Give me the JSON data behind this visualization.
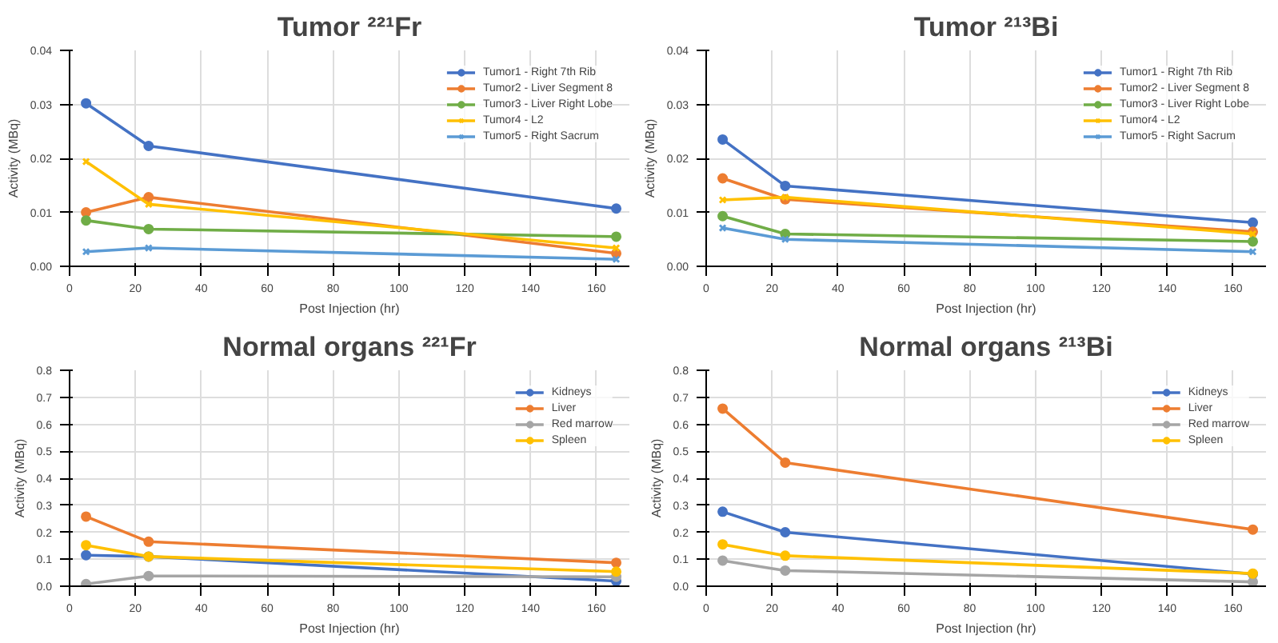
{
  "chart_data": [
    {
      "type": "line",
      "title": "Tumor ²²¹Fr",
      "xlabel": "Post Injection (hr)",
      "ylabel": "Activity (MBq)",
      "x": [
        5,
        24,
        166
      ],
      "xlim": [
        0,
        170
      ],
      "xticks": [
        0,
        20,
        40,
        60,
        80,
        100,
        120,
        140,
        160
      ],
      "ylim": [
        0,
        0.04
      ],
      "yticks": [
        {
          "value": 0,
          "label": "0.00"
        },
        {
          "value": 0.01,
          "label": "0.01"
        },
        {
          "value": 0.02,
          "label": "0.02"
        },
        {
          "value": 0.03,
          "label": "0.03"
        },
        {
          "value": 0.04,
          "label": "0.04"
        }
      ],
      "grid": true,
      "legend": "top right",
      "line_style": "solid",
      "series": [
        {
          "name": "Tumor1 - Right 7th Rib",
          "color": "#4472c4",
          "marker": "circle",
          "values": [
            0.0302,
            0.0223,
            0.0107
          ]
        },
        {
          "name": "Tumor2 - Liver Segment 8",
          "color": "#ed7d31",
          "marker": "circle",
          "values": [
            0.01,
            0.0128,
            0.0024
          ]
        },
        {
          "name": "Tumor3 - Liver Right Lobe",
          "color": "#70ad47",
          "marker": "circle",
          "values": [
            0.0085,
            0.0069,
            0.0055
          ]
        },
        {
          "name": "Tumor4 - L2",
          "color": "#ffc000",
          "marker": "cross",
          "values": [
            0.0194,
            0.0115,
            0.0034
          ]
        },
        {
          "name": "Tumor5 - Right Sacrum",
          "color": "#5b9bd5",
          "marker": "cross",
          "values": [
            0.0027,
            0.0034,
            0.0013
          ]
        }
      ]
    },
    {
      "type": "line",
      "title": "Tumor ²¹³Bi",
      "xlabel": "Post Injection (hr)",
      "ylabel": "Activity (MBq)",
      "x": [
        5,
        24,
        166
      ],
      "xlim": [
        0,
        170
      ],
      "xticks": [
        0,
        20,
        40,
        60,
        80,
        100,
        120,
        140,
        160
      ],
      "ylim": [
        0,
        0.04
      ],
      "yticks": [
        {
          "value": 0,
          "label": "0.00"
        },
        {
          "value": 0.01,
          "label": "0.01"
        },
        {
          "value": 0.02,
          "label": "0.02"
        },
        {
          "value": 0.03,
          "label": "0.03"
        },
        {
          "value": 0.04,
          "label": "0.04"
        }
      ],
      "grid": true,
      "legend": "top right",
      "line_style": "solid",
      "series": [
        {
          "name": "Tumor1 - Right 7th Rib",
          "color": "#4472c4",
          "marker": "circle",
          "values": [
            0.0235,
            0.0149,
            0.0081
          ]
        },
        {
          "name": "Tumor2 - Liver Segment 8",
          "color": "#ed7d31",
          "marker": "circle",
          "values": [
            0.0163,
            0.0124,
            0.0064
          ]
        },
        {
          "name": "Tumor3 - Liver Right Lobe",
          "color": "#70ad47",
          "marker": "circle",
          "values": [
            0.0093,
            0.006,
            0.0046
          ]
        },
        {
          "name": "Tumor4 - L2",
          "color": "#ffc000",
          "marker": "cross",
          "values": [
            0.0123,
            0.0128,
            0.006
          ]
        },
        {
          "name": "Tumor5 - Right Sacrum",
          "color": "#5b9bd5",
          "marker": "cross",
          "values": [
            0.0071,
            0.005,
            0.0027
          ]
        }
      ]
    },
    {
      "type": "line",
      "title": "Normal organs ²²¹Fr",
      "xlabel": "Post Injection (hr)",
      "ylabel": "Activity (MBq)",
      "x": [
        5,
        24,
        166
      ],
      "xlim": [
        0,
        170
      ],
      "xticks": [
        0,
        20,
        40,
        60,
        80,
        100,
        120,
        140,
        160
      ],
      "ylim": [
        0,
        0.8
      ],
      "yticks": [
        {
          "value": 0,
          "label": "0.0"
        },
        {
          "value": 0.1,
          "label": "0.1"
        },
        {
          "value": 0.2,
          "label": "0.2"
        },
        {
          "value": 0.3,
          "label": "0.3"
        },
        {
          "value": 0.4,
          "label": "0.4"
        },
        {
          "value": 0.5,
          "label": "0.5"
        },
        {
          "value": 0.6,
          "label": "0.6"
        },
        {
          "value": 0.7,
          "label": "0.7"
        },
        {
          "value": 0.8,
          "label": "0.8"
        }
      ],
      "grid": true,
      "legend": "top right",
      "line_style": "solid",
      "series": [
        {
          "name": "Kidneys",
          "color": "#4472c4",
          "marker": "circle",
          "values": [
            0.115,
            0.11,
            0.019
          ]
        },
        {
          "name": "Liver",
          "color": "#ed7d31",
          "marker": "circle",
          "values": [
            0.258,
            0.165,
            0.087
          ]
        },
        {
          "name": "Red marrow",
          "color": "#a5a5a5",
          "marker": "circle",
          "values": [
            0.008,
            0.038,
            0.035
          ]
        },
        {
          "name": "Spleen",
          "color": "#ffc000",
          "marker": "circle",
          "values": [
            0.152,
            0.11,
            0.054
          ]
        }
      ]
    },
    {
      "type": "line",
      "title": "Normal organs ²¹³Bi",
      "xlabel": "Post Injection (hr)",
      "ylabel": "Activity (MBq)",
      "x": [
        5,
        24,
        166
      ],
      "xlim": [
        0,
        170
      ],
      "xticks": [
        0,
        20,
        40,
        60,
        80,
        100,
        120,
        140,
        160
      ],
      "ylim": [
        0,
        0.8
      ],
      "yticks": [
        {
          "value": 0,
          "label": "0.0"
        },
        {
          "value": 0.1,
          "label": "0.1"
        },
        {
          "value": 0.2,
          "label": "0.2"
        },
        {
          "value": 0.3,
          "label": "0.3"
        },
        {
          "value": 0.4,
          "label": "0.4"
        },
        {
          "value": 0.5,
          "label": "0.5"
        },
        {
          "value": 0.6,
          "label": "0.6"
        },
        {
          "value": 0.7,
          "label": "0.7"
        },
        {
          "value": 0.8,
          "label": "0.8"
        }
      ],
      "grid": true,
      "legend": "top right",
      "line_style": "solid",
      "series": [
        {
          "name": "Kidneys",
          "color": "#4472c4",
          "marker": "circle",
          "values": [
            0.276,
            0.2,
            0.045
          ]
        },
        {
          "name": "Liver",
          "color": "#ed7d31",
          "marker": "circle",
          "values": [
            0.658,
            0.458,
            0.21
          ]
        },
        {
          "name": "Red marrow",
          "color": "#a5a5a5",
          "marker": "circle",
          "values": [
            0.095,
            0.058,
            0.016
          ]
        },
        {
          "name": "Spleen",
          "color": "#ffc000",
          "marker": "circle",
          "values": [
            0.155,
            0.113,
            0.047
          ]
        }
      ]
    }
  ]
}
